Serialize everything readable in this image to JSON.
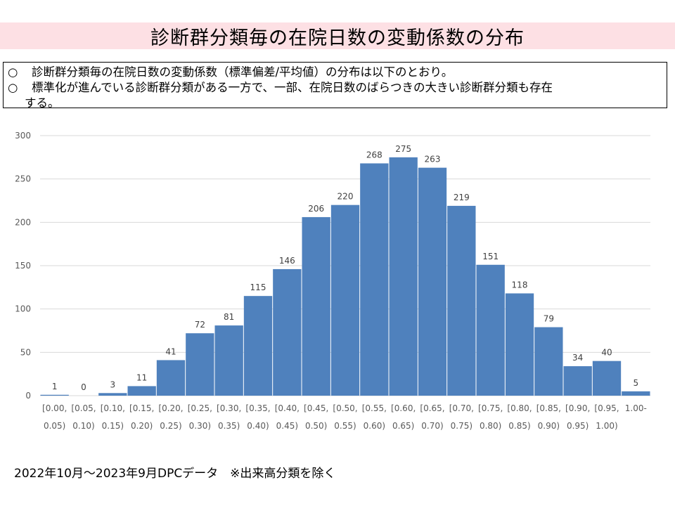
{
  "header": {
    "title": "診断群分類毎の在院日数の変動係数の分布"
  },
  "notes": {
    "bullet": "○",
    "items": [
      "診断群分類毎の在院日数の変動係数（標準偏差/平均値）の分布は以下のとおり。",
      "標準化が進んでいる診断群分類がある一方で、一部、在院日数のばらつきの大きい診断群分類も存在",
      "する。"
    ]
  },
  "chart_data": {
    "type": "bar",
    "categories": [
      [
        "[0.00,",
        "0.05)"
      ],
      [
        "[0.05,",
        "0.10)"
      ],
      [
        "[0.10,",
        "0.15)"
      ],
      [
        "[0.15,",
        "0.20)"
      ],
      [
        "[0.20,",
        "0.25)"
      ],
      [
        "[0.25,",
        "0.30)"
      ],
      [
        "[0.30,",
        "0.35)"
      ],
      [
        "[0.35,",
        "0.40)"
      ],
      [
        "[0.40,",
        "0.45)"
      ],
      [
        "[0.45,",
        "0.50)"
      ],
      [
        "[0.50,",
        "0.55)"
      ],
      [
        "[0.55,",
        "0.60)"
      ],
      [
        "[0.60,",
        "0.65)"
      ],
      [
        "[0.65,",
        "0.70)"
      ],
      [
        "[0.70,",
        "0.75)"
      ],
      [
        "[0.75,",
        "0.80)"
      ],
      [
        "[0.80,",
        "0.85)"
      ],
      [
        "[0.85,",
        "0.90)"
      ],
      [
        "[0.90,",
        "0.95)"
      ],
      [
        "[0.95,",
        "1.00)"
      ],
      [
        "1.00-",
        ""
      ]
    ],
    "values": [
      1,
      0,
      3,
      11,
      41,
      72,
      81,
      115,
      146,
      206,
      220,
      268,
      275,
      263,
      219,
      151,
      118,
      79,
      34,
      40,
      5
    ],
    "yticks": [
      0,
      50,
      100,
      150,
      200,
      250,
      300
    ],
    "ylim": [
      0,
      300
    ],
    "bar_color": "#4f81bd",
    "grid_color": "#d9d9d9",
    "data_labels": true,
    "grid": true
  },
  "footer": {
    "note": "2022年10月～2023年9月DPCデータ　※出来高分類を除く"
  }
}
